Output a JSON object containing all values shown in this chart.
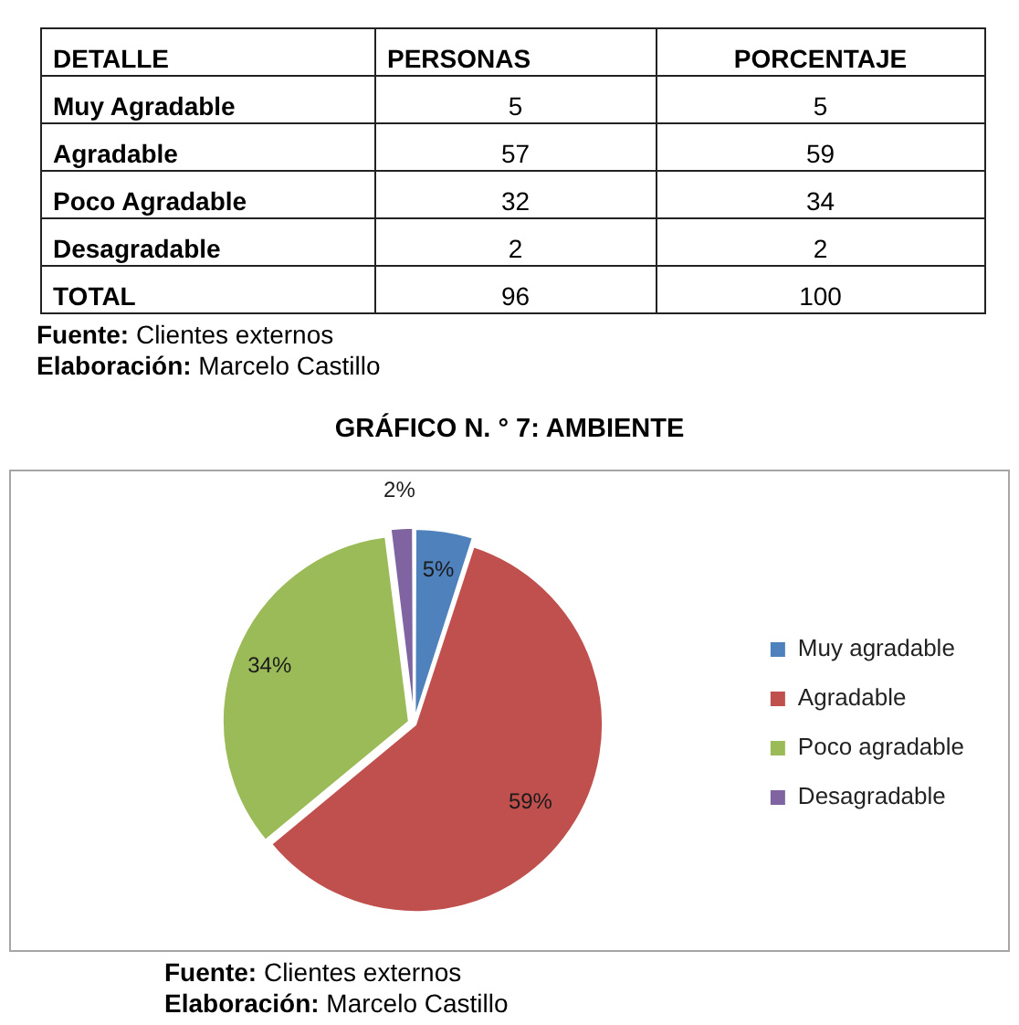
{
  "chart_data": [
    {
      "type": "other",
      "xlabel": "DETALLE",
      "categories": [
        "Muy Agradable",
        "Agradable",
        "Poco Agradable",
        "Desagradable",
        "TOTAL"
      ],
      "series": [
        {
          "name": "PERSONAS",
          "values": [
            5,
            57,
            32,
            2,
            96
          ]
        },
        {
          "name": "PORCENTAJE",
          "values": [
            5,
            59,
            34,
            2,
            100
          ]
        }
      ],
      "data_labels": true,
      "annotations": [
        "Fuente: Clientes externos",
        "Elaboración: Marcelo Castillo"
      ]
    },
    {
      "type": "pie",
      "title": "GRÁFICO N. ° 7: AMBIENTE",
      "categories": [
        "Muy agradable",
        "Agradable",
        "Poco agradable",
        "Desagradable"
      ],
      "values": [
        5,
        59,
        34,
        2
      ],
      "colors": [
        "#4f81bd",
        "#c0504d",
        "#9bbb59",
        "#8064a2"
      ],
      "value_labels": [
        "5%",
        "59%",
        "34%",
        "2%"
      ],
      "legend": "right",
      "annotations": [
        "Fuente: Clientes externos",
        "Elaboración: Marcelo Castillo"
      ]
    }
  ]
}
